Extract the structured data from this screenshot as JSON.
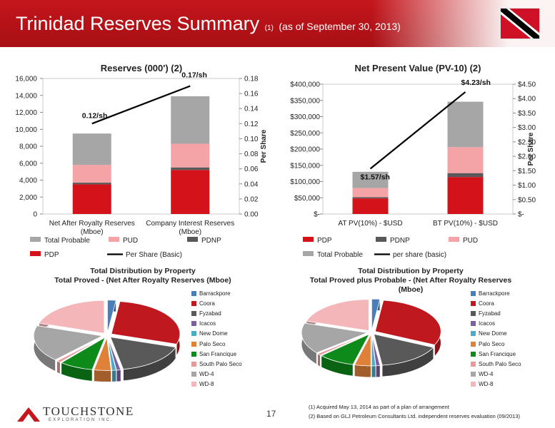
{
  "slide": {
    "title": "Trinidad Reserves Summary",
    "title_footnote": "(1)",
    "title_suffix": "(as of September 30, 2013)",
    "page_number": "17",
    "logo": {
      "name": "TOUCHSTONE",
      "tagline": "EXPLORATION INC."
    },
    "footnotes": [
      "(1)    Acquired May 13, 2014 as part of a plan of arrangement",
      "(2)    Based on GLJ Petroleum Consultants Ltd. independent reserves evaluation (09/2013)"
    ]
  },
  "chart_data": [
    {
      "type": "bar",
      "stacked": true,
      "title": "Reserves (000') (2)",
      "categories": [
        "Net After Royalty Reserves (Mboe)",
        "Company Interest Reserves (Mboe)"
      ],
      "series": [
        {
          "name": "PDP",
          "values": [
            3500,
            5200
          ],
          "color": "#d4121a"
        },
        {
          "name": "PDNP",
          "values": [
            200,
            300
          ],
          "color": "#595959"
        },
        {
          "name": "PUD",
          "values": [
            2100,
            2800
          ],
          "color": "#f4a3a6"
        },
        {
          "name": "Total Probable",
          "values": [
            3700,
            5600
          ],
          "color": "#a6a6a6"
        }
      ],
      "line_series": {
        "name": "Per Share  (Basic)",
        "values": [
          0.12,
          0.17
        ],
        "labels": [
          "0.12/sh",
          "0.17/sh"
        ],
        "axis": "right"
      },
      "ylim": [
        0,
        16000
      ],
      "yticks": [
        "0",
        "2,000",
        "4,000",
        "6,000",
        "8,000",
        "10,000",
        "12,000",
        "14,000",
        "16,000"
      ],
      "y2lim": [
        0,
        0.18
      ],
      "y2ticks": [
        "0.00",
        "0.02",
        "0.04",
        "0.06",
        "0.08",
        "0.10",
        "0.12",
        "0.14",
        "0.16",
        "0.18"
      ],
      "y2label": "Per Share",
      "legend_order": [
        "Total Probable",
        "PUD",
        "PDNP",
        "PDP",
        "Per Share  (Basic)"
      ]
    },
    {
      "type": "bar",
      "stacked": true,
      "title": "Net Present Value (PV-10) (2)",
      "categories": [
        "AT PV(10%) - $USD",
        "BT PV(10%) - $USD"
      ],
      "series": [
        {
          "name": "PDP",
          "values": [
            48000,
            114000
          ],
          "color": "#d4121a"
        },
        {
          "name": "PDNP",
          "values": [
            4000,
            12000
          ],
          "color": "#595959"
        },
        {
          "name": "PUD",
          "values": [
            28000,
            80000
          ],
          "color": "#f4a3a6"
        },
        {
          "name": "Total Probable",
          "values": [
            50000,
            140000
          ],
          "color": "#a6a6a6"
        }
      ],
      "line_series": {
        "name": "per share (basic)",
        "values": [
          1.57,
          4.23
        ],
        "labels": [
          "$1.57/sh",
          "$4.23/sh"
        ],
        "axis": "right"
      },
      "ylim": [
        0,
        400000
      ],
      "yticks": [
        "$-",
        "$50,000",
        "$100,000",
        "$150,000",
        "$200,000",
        "$250,000",
        "$300,000",
        "$350,000",
        "$400,000"
      ],
      "y2lim": [
        0,
        4.5
      ],
      "y2ticks": [
        "$-",
        "$0.50",
        "$1.00",
        "$1.50",
        "$2.00",
        "$2.50",
        "$3.00",
        "$3.50",
        "$4.00",
        "$4.50"
      ],
      "y2label": "Per Share",
      "legend_order": [
        "PDP",
        "PDNP",
        "PUD",
        "Total Probable",
        "per share (basic)"
      ]
    },
    {
      "type": "pie",
      "title": "Total Distribution by Property\nTotal Proved - (Net After Royalty Reserves (Mboe)",
      "labels": [
        "Barrackpore",
        "Coora",
        "Fyzabad",
        "Icacos",
        "New Dome",
        "Palo Seco",
        "San Francique",
        "South Palo Seco",
        "WD-4",
        "WD-8"
      ],
      "values": [
        2,
        28,
        17,
        1,
        1,
        4,
        8,
        1,
        18,
        20
      ],
      "colors": [
        "#4a7ebb",
        "#c0181f",
        "#595959",
        "#7d5fa0",
        "#4aacc6",
        "#e0813a",
        "#0d8a1a",
        "#e69a9a",
        "#a6a6a6",
        "#f4b6b8"
      ],
      "exploded": true
    },
    {
      "type": "pie",
      "title": "Total Distribution by Property\nTotal Proved plus Probable - (Net After Royalty Reserves\n(Mboe)",
      "labels": [
        "Barrackpore",
        "Coora",
        "Fyzabad",
        "Icacos",
        "New Dome",
        "Palo Seco",
        "San Francique",
        "South Palo Seco",
        "WD-4",
        "WD-8"
      ],
      "values": [
        2,
        30,
        16,
        1,
        1,
        4,
        9,
        1,
        16,
        20
      ],
      "colors": [
        "#4a7ebb",
        "#c0181f",
        "#595959",
        "#7d5fa0",
        "#4aacc6",
        "#e0813a",
        "#0d8a1a",
        "#e69a9a",
        "#a6a6a6",
        "#f4b6b8"
      ],
      "exploded": true
    }
  ]
}
